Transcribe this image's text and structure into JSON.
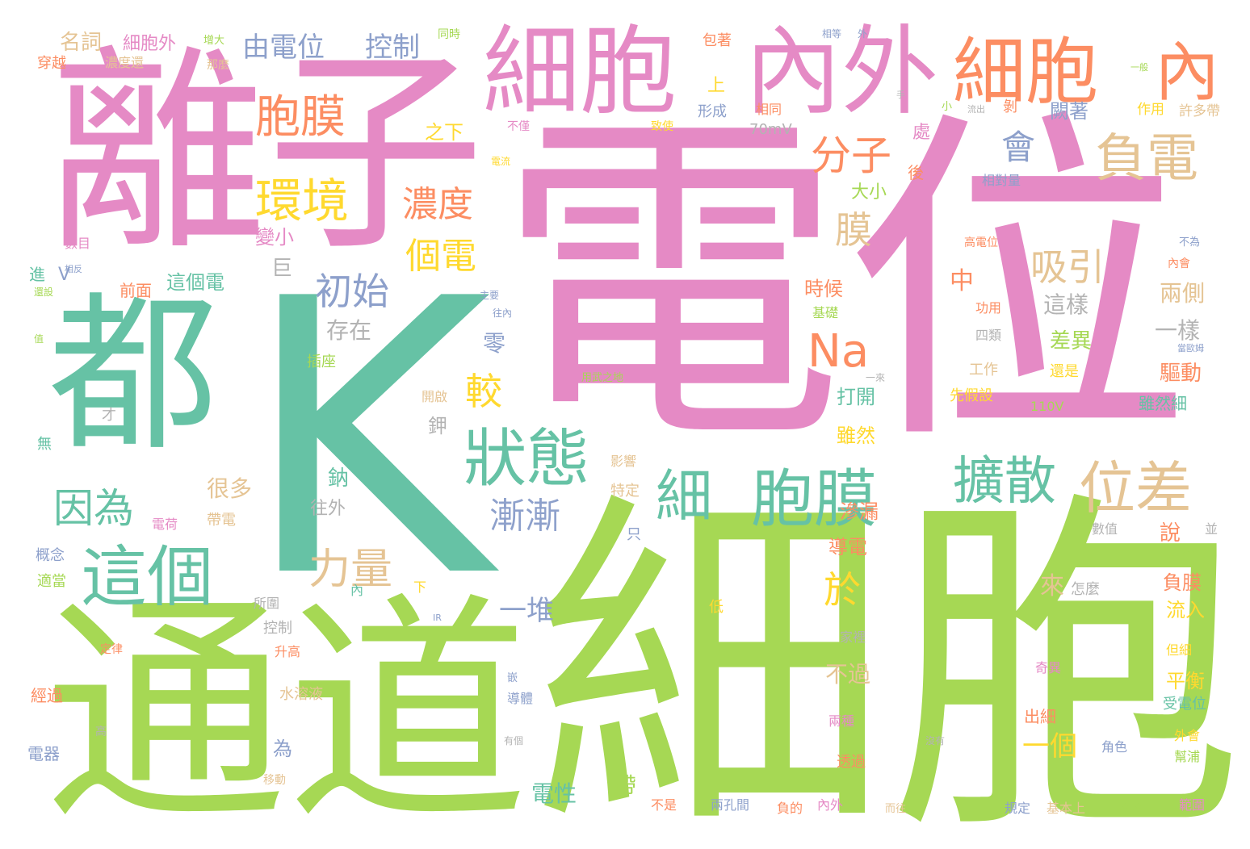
{
  "palette": {
    "pink": "#e58ac5",
    "green": "#a6d854",
    "teal": "#66c2a5",
    "orange": "#fc8d62",
    "blue": "#8da0cb",
    "yellow": "#ffd92f",
    "tan": "#e5c494",
    "gray": "#b3b3b3"
  },
  "words": [
    {
      "text": "電位",
      "color": "#e58ac5"
    },
    {
      "text": "細胞",
      "color": "#a6d854"
    },
    {
      "text": "K",
      "color": "#66c2a5"
    },
    {
      "text": "離子",
      "color": "#e58ac5"
    },
    {
      "text": "通道",
      "color": "#a6d854"
    },
    {
      "text": "都",
      "color": "#66c2a5"
    },
    {
      "text": "細胞",
      "color": "#e58ac5"
    },
    {
      "text": "內外",
      "color": "#e58ac5"
    },
    {
      "text": "細胞",
      "color": "#fc8d62"
    },
    {
      "text": "內",
      "color": "#fc8d62"
    },
    {
      "text": "這個",
      "color": "#66c2a5"
    },
    {
      "text": "胞膜",
      "color": "#66c2a5"
    },
    {
      "text": "狀態",
      "color": "#66c2a5"
    },
    {
      "text": "細",
      "color": "#66c2a5"
    },
    {
      "text": "位差",
      "color": "#e5c494"
    },
    {
      "text": "負電",
      "color": "#e5c494"
    },
    {
      "text": "擴散",
      "color": "#66c2a5"
    },
    {
      "text": "胞膜",
      "color": "#fc8d62"
    },
    {
      "text": "環境",
      "color": "#ffd92f"
    },
    {
      "text": "分子",
      "color": "#fc8d62"
    },
    {
      "text": "Na",
      "color": "#fc8d62"
    },
    {
      "text": "吸引",
      "color": "#e5c494"
    },
    {
      "text": "力量",
      "color": "#e5c494"
    },
    {
      "text": "因為",
      "color": "#66c2a5"
    },
    {
      "text": "初始",
      "color": "#8da0cb"
    },
    {
      "text": "濃度",
      "color": "#fc8d62"
    },
    {
      "text": "個電",
      "color": "#ffd92f"
    },
    {
      "text": "漸漸",
      "color": "#8da0cb"
    },
    {
      "text": "較",
      "color": "#ffd92f"
    },
    {
      "text": "於",
      "color": "#ffd92f"
    },
    {
      "text": "會",
      "color": "#8da0cb"
    },
    {
      "text": "膜",
      "color": "#e5c494"
    },
    {
      "text": "由電位",
      "color": "#8da0cb"
    },
    {
      "text": "控制",
      "color": "#8da0cb"
    },
    {
      "text": "細胞外",
      "color": "#e58ac5"
    },
    {
      "text": "名詞",
      "color": "#e5c494"
    },
    {
      "text": "增大",
      "color": "#a6d854"
    },
    {
      "text": "同時",
      "color": "#a6d854"
    },
    {
      "text": "穿越",
      "color": "#fc8d62"
    },
    {
      "text": "濃度還",
      "color": "#e5c494"
    },
    {
      "text": "那麼",
      "color": "#e5c494"
    },
    {
      "text": "包著",
      "color": "#fc8d62"
    },
    {
      "text": "相等",
      "color": "#8da0cb"
    },
    {
      "text": "外",
      "color": "#8da0cb"
    },
    {
      "text": "上",
      "color": "#ffd92f"
    },
    {
      "text": "形成",
      "color": "#8da0cb"
    },
    {
      "text": "70mV",
      "color": "#b3b3b3"
    },
    {
      "text": "相同",
      "color": "#fc8d62"
    },
    {
      "text": "剝",
      "color": "#fc8d62"
    },
    {
      "text": "闕著",
      "color": "#8da0cb"
    },
    {
      "text": "作用",
      "color": "#ffd92f"
    },
    {
      "text": "許多帶",
      "color": "#e5c494"
    },
    {
      "text": "一般",
      "color": "#a6d854"
    },
    {
      "text": "之下",
      "color": "#ffd92f"
    },
    {
      "text": "不僅",
      "color": "#e58ac5"
    },
    {
      "text": "致使",
      "color": "#ffd92f"
    },
    {
      "text": "處",
      "color": "#e58ac5"
    },
    {
      "text": "後",
      "color": "#fc8d62"
    },
    {
      "text": "相對量",
      "color": "#8da0cb"
    },
    {
      "text": "大小",
      "color": "#a6d854"
    },
    {
      "text": "數目",
      "color": "#e58ac5"
    },
    {
      "text": "變小",
      "color": "#e58ac5"
    },
    {
      "text": "巨",
      "color": "#b3b3b3"
    },
    {
      "text": "V",
      "color": "#8da0cb"
    },
    {
      "text": "進",
      "color": "#66c2a5"
    },
    {
      "text": "這個電",
      "color": "#66c2a5"
    },
    {
      "text": "前面",
      "color": "#fc8d62"
    },
    {
      "text": "存在",
      "color": "#b3b3b3"
    },
    {
      "text": "時候",
      "color": "#fc8d62"
    },
    {
      "text": "基礎",
      "color": "#a6d854"
    },
    {
      "text": "中",
      "color": "#fc8d62"
    },
    {
      "text": "這樣",
      "color": "#b3b3b3"
    },
    {
      "text": "兩側",
      "color": "#e5c494"
    },
    {
      "text": "一樣",
      "color": "#b3b3b3"
    },
    {
      "text": "高電位",
      "color": "#fc8d62"
    },
    {
      "text": "內會",
      "color": "#fc8d62"
    },
    {
      "text": "不為",
      "color": "#8da0cb"
    },
    {
      "text": "功用",
      "color": "#fc8d62"
    },
    {
      "text": "零",
      "color": "#8da0cb"
    },
    {
      "text": "差異",
      "color": "#a6d854"
    },
    {
      "text": "四類",
      "color": "#b3b3b3"
    },
    {
      "text": "驅動",
      "color": "#fc8d62"
    },
    {
      "text": "工作",
      "color": "#e5c494"
    },
    {
      "text": "還是",
      "color": "#ffd92f"
    },
    {
      "text": "插座",
      "color": "#a6d854"
    },
    {
      "text": "吸引力",
      "color": "#e58ac5"
    },
    {
      "text": "用武之地",
      "color": "#a6d854"
    },
    {
      "text": "打開",
      "color": "#66c2a5"
    },
    {
      "text": "先假設",
      "color": "#ffd92f"
    },
    {
      "text": "雖然細",
      "color": "#66c2a5"
    },
    {
      "text": "110V",
      "color": "#a6d854"
    },
    {
      "text": "開啟",
      "color": "#e5c494"
    },
    {
      "text": "鉀",
      "color": "#b3b3b3"
    },
    {
      "text": "雖然",
      "color": "#ffd92f"
    },
    {
      "text": "才",
      "color": "#b3b3b3"
    },
    {
      "text": "無",
      "color": "#66c2a5"
    },
    {
      "text": "影響",
      "color": "#e5c494"
    },
    {
      "text": "特定",
      "color": "#e5c494"
    },
    {
      "text": "很多",
      "color": "#e5c494"
    },
    {
      "text": "鈉",
      "color": "#66c2a5"
    },
    {
      "text": "往外",
      "color": "#b3b3b3"
    },
    {
      "text": "滲漏",
      "color": "#fc8d62"
    },
    {
      "text": "數值",
      "color": "#b3b3b3"
    },
    {
      "text": "並",
      "color": "#b3b3b3"
    },
    {
      "text": "說",
      "color": "#fc8d62"
    },
    {
      "text": "電荷",
      "color": "#e58ac5"
    },
    {
      "text": "帶電",
      "color": "#e5c494"
    },
    {
      "text": "只",
      "color": "#8da0cb"
    },
    {
      "text": "導電",
      "color": "#fc8d62"
    },
    {
      "text": "概念",
      "color": "#8da0cb"
    },
    {
      "text": "密度",
      "color": "#a6d854"
    },
    {
      "text": "適當",
      "color": "#a6d854"
    },
    {
      "text": "負膜",
      "color": "#fc8d62"
    },
    {
      "text": "來",
      "color": "#e5c494"
    },
    {
      "text": "怎麼",
      "color": "#b3b3b3"
    },
    {
      "text": "流入",
      "color": "#ffd92f"
    },
    {
      "text": "一堆",
      "color": "#8da0cb"
    },
    {
      "text": "所圍",
      "color": "#b3b3b3"
    },
    {
      "text": "下",
      "color": "#ffd92f"
    },
    {
      "text": "內",
      "color": "#66c2a5"
    },
    {
      "text": "低",
      "color": "#ffd92f"
    },
    {
      "text": "控制",
      "color": "#b3b3b3"
    },
    {
      "text": "升高",
      "color": "#fc8d62"
    },
    {
      "text": "家裡",
      "color": "#b3b3b3"
    },
    {
      "text": "不過",
      "color": "#e5c494"
    },
    {
      "text": "定律",
      "color": "#fc8d62"
    },
    {
      "text": "平衡",
      "color": "#ffd92f"
    },
    {
      "text": "奇異",
      "color": "#e58ac5"
    },
    {
      "text": "但細",
      "color": "#ffd92f"
    },
    {
      "text": "經過",
      "color": "#fc8d62"
    },
    {
      "text": "水溶液",
      "color": "#e5c494"
    },
    {
      "text": "導體",
      "color": "#8da0cb"
    },
    {
      "text": "受電位",
      "color": "#66c2a5"
    },
    {
      "text": "出細",
      "color": "#fc8d62"
    },
    {
      "text": "兩種",
      "color": "#e58ac5"
    },
    {
      "text": "高",
      "color": "#b3b3b3"
    },
    {
      "text": "外會",
      "color": "#ffd92f"
    },
    {
      "text": "為",
      "color": "#8da0cb"
    },
    {
      "text": "一個",
      "color": "#ffd92f"
    },
    {
      "text": "角色",
      "color": "#8da0cb"
    },
    {
      "text": "電器",
      "color": "#8da0cb"
    },
    {
      "text": "幫浦",
      "color": "#a6d854"
    },
    {
      "text": "透過",
      "color": "#fc8d62"
    },
    {
      "text": "移動",
      "color": "#e5c494"
    },
    {
      "text": "電性",
      "color": "#66c2a5"
    },
    {
      "text": "帶",
      "color": "#a6d854"
    },
    {
      "text": "不是",
      "color": "#fc8d62"
    },
    {
      "text": "兩孔間",
      "color": "#8da0cb"
    },
    {
      "text": "負的",
      "color": "#fc8d62"
    },
    {
      "text": "內外",
      "color": "#e58ac5"
    },
    {
      "text": "而往",
      "color": "#e5c494"
    },
    {
      "text": "規定",
      "color": "#8da0cb"
    },
    {
      "text": "基本上",
      "color": "#e5c494"
    },
    {
      "text": "多多",
      "color": "#a6d854"
    },
    {
      "text": "範圍",
      "color": "#e58ac5"
    },
    {
      "text": "相反",
      "color": "#8da0cb"
    },
    {
      "text": "還設",
      "color": "#a6d854"
    },
    {
      "text": "值",
      "color": "#a6d854"
    },
    {
      "text": "IR",
      "color": "#8da0cb"
    },
    {
      "text": "嵌",
      "color": "#8da0cb"
    },
    {
      "text": "沒有",
      "color": "#b3b3b3"
    },
    {
      "text": "有個",
      "color": "#b3b3b3"
    },
    {
      "text": "一來",
      "color": "#b3b3b3"
    },
    {
      "text": "主要",
      "color": "#8da0cb"
    },
    {
      "text": "往內",
      "color": "#8da0cb"
    },
    {
      "text": "當歐姆",
      "color": "#8da0cb"
    },
    {
      "text": "電流",
      "color": "#ffd92f"
    },
    {
      "text": "手",
      "color": "#b3b3b3"
    },
    {
      "text": "流出",
      "color": "#b3b3b3"
    },
    {
      "text": "小",
      "color": "#a6d854"
    }
  ]
}
